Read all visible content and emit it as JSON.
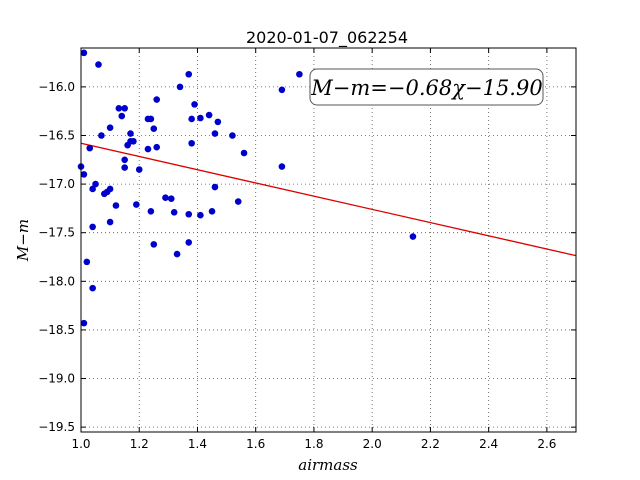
{
  "chart_data": {
    "type": "scatter",
    "title": "2020-01-07_062254",
    "xlabel": "airmass",
    "ylabel": "M−m",
    "xlim": [
      1.0,
      2.7
    ],
    "ylim": [
      -19.55,
      -15.6
    ],
    "xticks": [
      "1.0",
      "1.2",
      "1.4",
      "1.6",
      "1.8",
      "2.0",
      "2.2",
      "2.4",
      "2.6"
    ],
    "yticks": [
      "−16.0",
      "−16.5",
      "−17.0",
      "−17.5",
      "−18.0",
      "−18.5",
      "−19.0",
      "−19.5"
    ],
    "grid": true,
    "annotation": "M−m=−0.68χ−15.90",
    "point_color": "#0000cc",
    "fit_color": "#dd0000",
    "fit": {
      "slope": -0.68,
      "intercept": -15.9
    },
    "points": [
      [
        1.01,
        -15.65
      ],
      [
        1.06,
        -15.77
      ],
      [
        1.0,
        -16.82
      ],
      [
        1.01,
        -16.9
      ],
      [
        1.03,
        -16.63
      ],
      [
        1.04,
        -17.05
      ],
      [
        1.05,
        -17.0
      ],
      [
        1.07,
        -16.5
      ],
      [
        1.08,
        -17.1
      ],
      [
        1.09,
        -17.08
      ],
      [
        1.1,
        -17.05
      ],
      [
        1.1,
        -16.42
      ],
      [
        1.12,
        -17.22
      ],
      [
        1.13,
        -16.22
      ],
      [
        1.14,
        -16.3
      ],
      [
        1.15,
        -16.22
      ],
      [
        1.15,
        -16.75
      ],
      [
        1.15,
        -16.83
      ],
      [
        1.16,
        -16.6
      ],
      [
        1.17,
        -16.48
      ],
      [
        1.17,
        -16.56
      ],
      [
        1.18,
        -16.56
      ],
      [
        1.19,
        -17.21
      ],
      [
        1.2,
        -16.85
      ],
      [
        1.23,
        -16.64
      ],
      [
        1.23,
        -16.33
      ],
      [
        1.24,
        -16.33
      ],
      [
        1.24,
        -17.28
      ],
      [
        1.25,
        -16.43
      ],
      [
        1.26,
        -16.62
      ],
      [
        1.26,
        -16.13
      ],
      [
        1.29,
        -17.14
      ],
      [
        1.31,
        -17.15
      ],
      [
        1.32,
        -17.29
      ],
      [
        1.33,
        -17.72
      ],
      [
        1.34,
        -16.0
      ],
      [
        1.37,
        -15.87
      ],
      [
        1.37,
        -17.31
      ],
      [
        1.37,
        -17.6
      ],
      [
        1.38,
        -16.33
      ],
      [
        1.38,
        -16.58
      ],
      [
        1.39,
        -16.18
      ],
      [
        1.41,
        -16.32
      ],
      [
        1.41,
        -17.32
      ],
      [
        1.44,
        -16.29
      ],
      [
        1.45,
        -17.28
      ],
      [
        1.46,
        -16.48
      ],
      [
        1.46,
        -17.03
      ],
      [
        1.47,
        -16.36
      ],
      [
        1.52,
        -16.5
      ],
      [
        1.54,
        -17.18
      ],
      [
        1.56,
        -16.68
      ],
      [
        1.69,
        -16.03
      ],
      [
        1.69,
        -16.82
      ],
      [
        1.75,
        -15.87
      ],
      [
        2.14,
        -17.54
      ],
      [
        1.02,
        -17.8
      ],
      [
        1.04,
        -18.07
      ],
      [
        1.01,
        -18.43
      ],
      [
        1.25,
        -17.62
      ],
      [
        1.04,
        -17.44
      ],
      [
        1.1,
        -17.39
      ]
    ]
  }
}
